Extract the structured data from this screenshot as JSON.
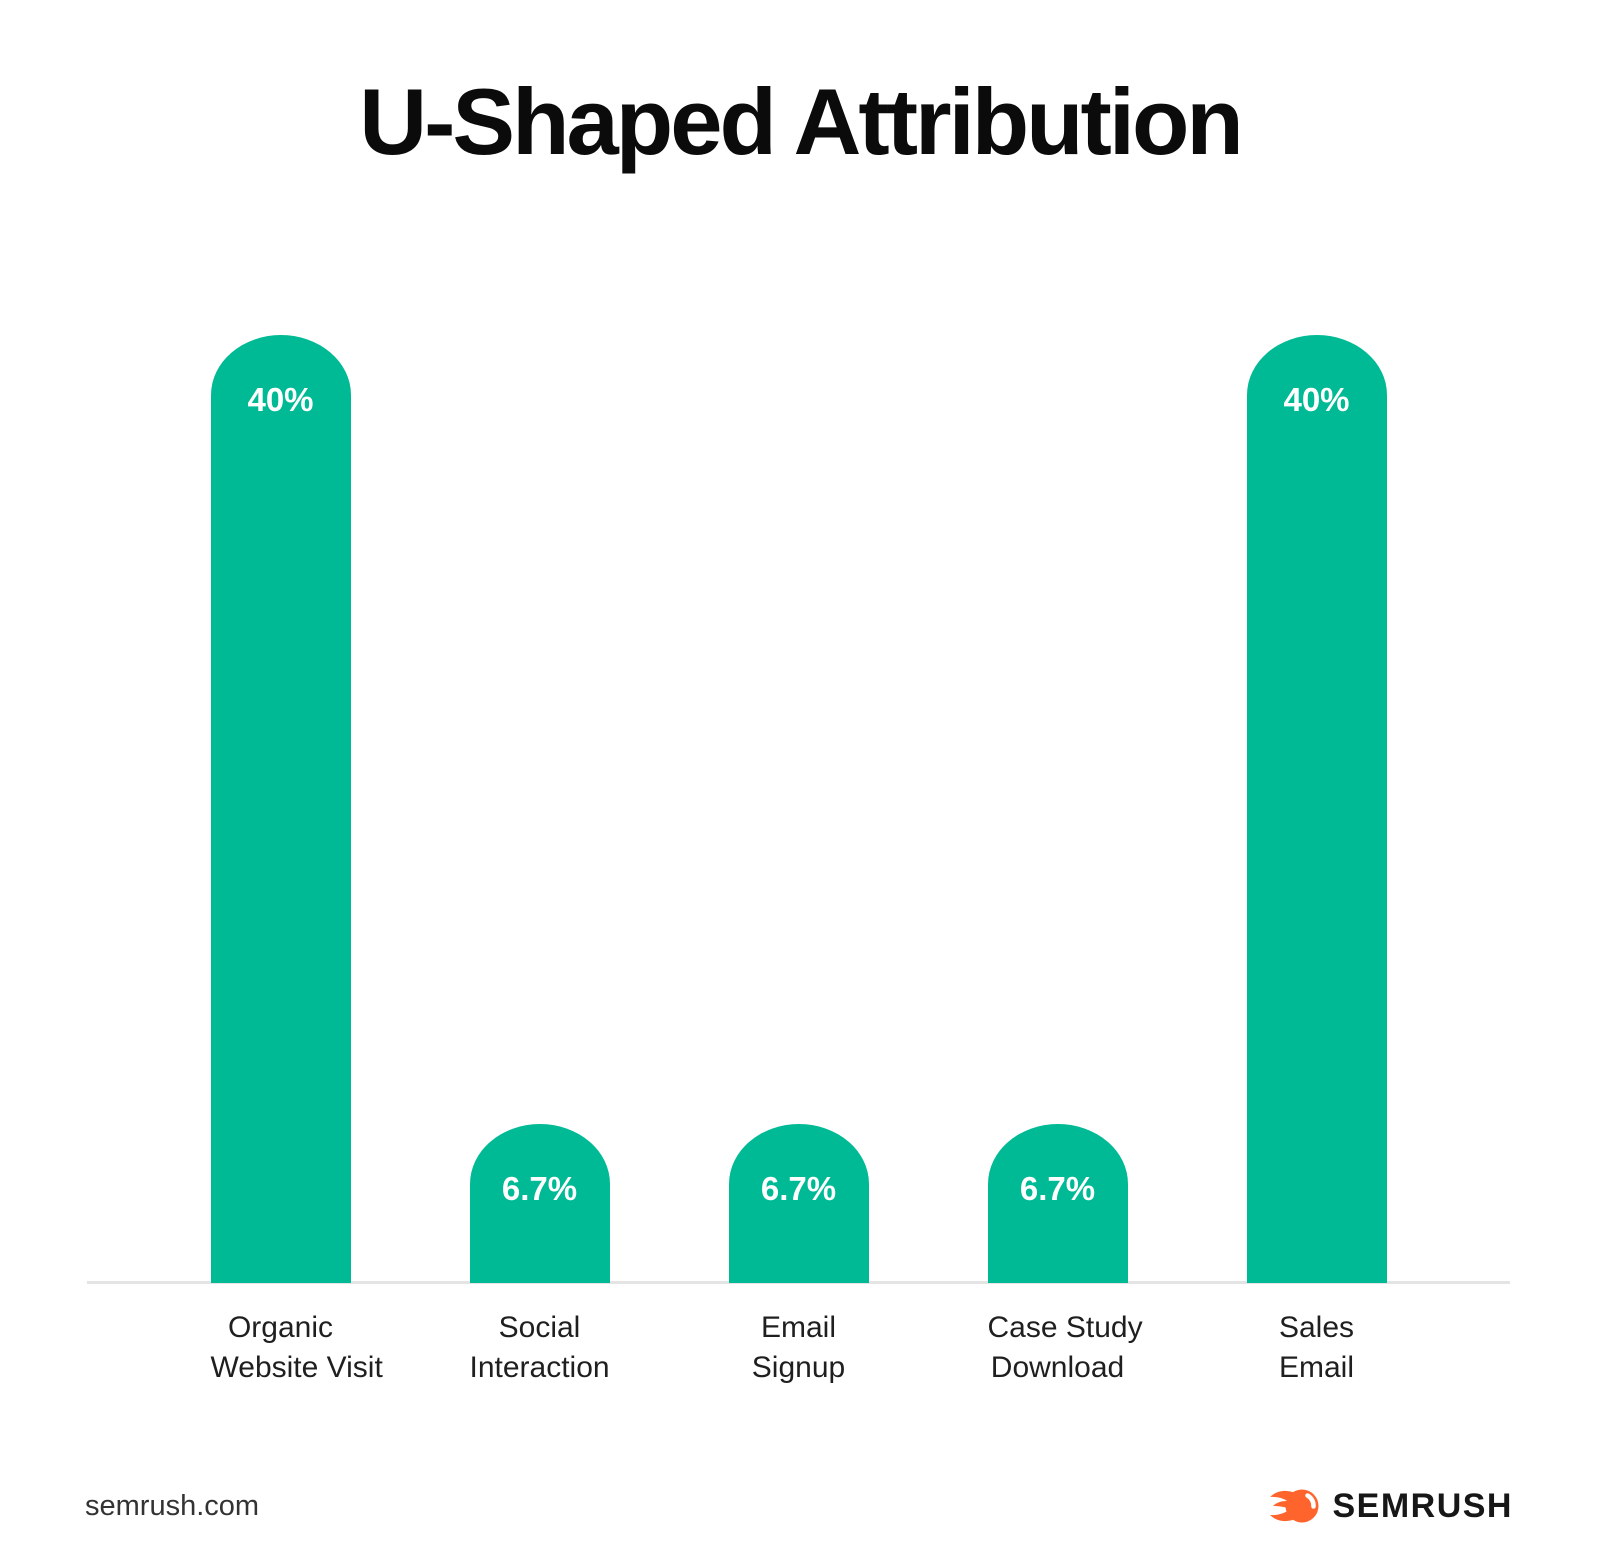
{
  "title": "U-Shaped Attribution",
  "chart_data": {
    "type": "bar",
    "title": "U-Shaped Attribution",
    "categories": [
      "Organic Website Visit",
      "Social Interaction",
      "Email Signup",
      "Case Study Download",
      "Sales Email"
    ],
    "category_lines": [
      [
        "Organic",
        "Website Visit"
      ],
      [
        "Social",
        "Interaction"
      ],
      [
        "Email",
        "Signup"
      ],
      [
        "Case Study",
        "Download"
      ],
      [
        "Sales",
        "Email"
      ]
    ],
    "values": [
      40,
      6.7,
      6.7,
      6.7,
      40
    ],
    "value_labels": [
      "40%",
      "6.7%",
      "6.7%",
      "6.7%",
      "40%"
    ],
    "xlabel": "",
    "ylabel": "",
    "ylim": [
      0,
      40
    ],
    "grid": false,
    "legend_position": "none",
    "axes_shown": "baseline-only",
    "bar_color": "#00ba95",
    "value_label_color": "#ffffff",
    "baseline_color": "#e4e4e4"
  },
  "footer": {
    "source": "semrush.com",
    "brand": "SEMRUSH",
    "brand_text_color": "#171717",
    "logo_flame_color": "#ff642d"
  }
}
